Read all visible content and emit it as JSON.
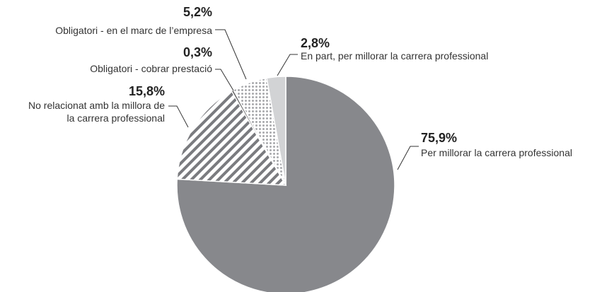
{
  "chart_data": {
    "type": "pie",
    "categories": [
      "Per millorar la carrera professional",
      "No relacionat amb la millora de la carrera professional",
      "Obligatori - cobrar prestació",
      "Obligatori - en el marc de l’empresa",
      "En part, per millorar la carrera professional"
    ],
    "values": [
      75.9,
      15.8,
      0.3,
      5.2,
      2.8
    ],
    "value_labels": [
      "75,9%",
      "15,8%",
      "0,3%",
      "5,2%",
      "2,8%"
    ],
    "colors": [
      "#87888c",
      "hatch",
      "#4a4a4a",
      "dots",
      "#d2d3d5"
    ]
  }
}
